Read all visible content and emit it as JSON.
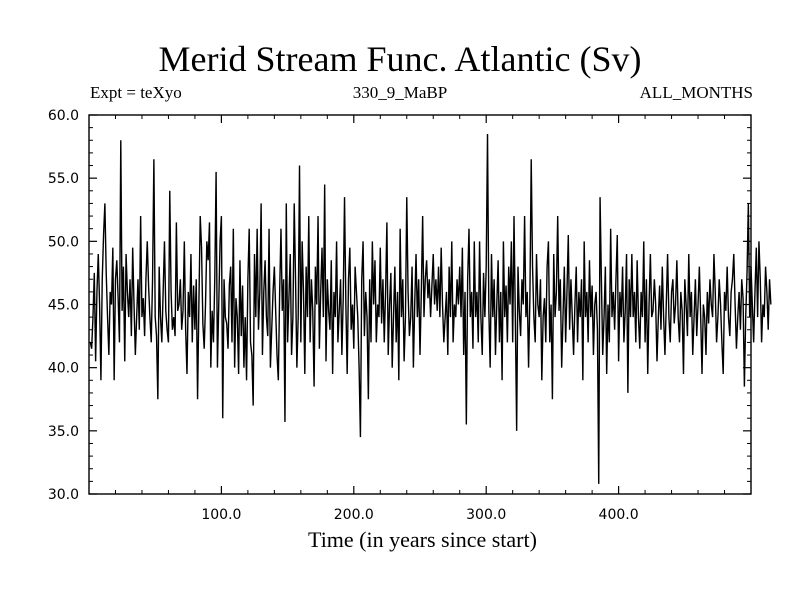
{
  "header": {
    "title": "Merid Stream Func. Atlantic (Sv)",
    "left_label": "Expt = teXyo",
    "center_label": "330_9_MaBP",
    "right_label": "ALL_MONTHS"
  },
  "chart_data": {
    "type": "line",
    "title": "Merid Stream Func. Atlantic (Sv)",
    "xlabel": "Time (in years since start)",
    "ylabel": "",
    "xlim": [
      0,
      500
    ],
    "ylim": [
      30.0,
      60.0
    ],
    "x_ticks": [
      100,
      200,
      300,
      400
    ],
    "x_tick_labels": [
      "100.0",
      "200.0",
      "300.0",
      "400.0"
    ],
    "y_ticks": [
      30,
      35,
      40,
      45,
      50,
      55,
      60
    ],
    "y_tick_labels": [
      "30.0",
      "35.0",
      "40.0",
      "45.0",
      "50.0",
      "55.0",
      "60.0"
    ],
    "grid": false,
    "series": [
      {
        "color": "#000000",
        "x_start": 1,
        "x_step": 1,
        "values": [
          42.0,
          41.5,
          44.0,
          47.5,
          40.5,
          46.0,
          49.0,
          45.0,
          39.0,
          47.0,
          50.5,
          53.0,
          47.5,
          44.0,
          41.0,
          46.0,
          45.0,
          49.5,
          39.0,
          47.0,
          48.5,
          45.5,
          42.0,
          58.0,
          44.5,
          48.0,
          40.5,
          49.0,
          46.0,
          44.0,
          47.0,
          42.5,
          49.5,
          45.0,
          41.0,
          44.0,
          47.0,
          43.0,
          52.0,
          44.0,
          45.5,
          42.5,
          47.0,
          50.0,
          46.5,
          44.0,
          42.0,
          47.0,
          56.5,
          44.0,
          42.5,
          37.5,
          48.0,
          44.0,
          42.0,
          46.0,
          50.0,
          44.5,
          43.0,
          42.0,
          54.0,
          46.0,
          43.0,
          44.0,
          42.5,
          51.5,
          44.5,
          45.0,
          47.0,
          43.0,
          44.5,
          50.0,
          43.0,
          39.5,
          46.0,
          44.0,
          49.0,
          42.0,
          46.5,
          43.0,
          47.0,
          37.5,
          45.0,
          52.0,
          49.5,
          43.5,
          41.5,
          45.0,
          50.0,
          48.5,
          51.5,
          40.0,
          44.5,
          42.0,
          47.0,
          55.5,
          40.0,
          45.0,
          50.0,
          52.0,
          36.0,
          47.0,
          44.0,
          43.5,
          41.5,
          46.5,
          48.0,
          42.0,
          51.0,
          40.0,
          45.5,
          44.0,
          39.5,
          48.5,
          42.5,
          46.5,
          40.0,
          44.0,
          39.0,
          47.0,
          51.0,
          42.0,
          41.0,
          37.0,
          49.0,
          44.0,
          51.0,
          43.0,
          46.0,
          53.0,
          41.0,
          46.0,
          48.5,
          44.0,
          42.5,
          51.0,
          40.0,
          43.0,
          46.0,
          48.0,
          44.5,
          41.0,
          39.0,
          46.0,
          51.0,
          44.5,
          47.0,
          35.7,
          53.0,
          42.0,
          45.5,
          49.0,
          41.0,
          44.0,
          53.0,
          47.0,
          40.0,
          44.0,
          56.0,
          42.0,
          50.0,
          46.0,
          39.5,
          48.0,
          44.0,
          52.0,
          42.0,
          47.0,
          44.5,
          38.5,
          48.0,
          45.0,
          52.0,
          41.5,
          46.0,
          49.5,
          44.0,
          54.5,
          40.5,
          47.0,
          44.5,
          43.0,
          48.5,
          39.5,
          46.0,
          44.0,
          50.0,
          42.0,
          44.5,
          47.0,
          41.0,
          45.5,
          53.5,
          45.0,
          39.5,
          47.0,
          49.5,
          43.0,
          45.0,
          41.5,
          48.0,
          46.0,
          44.0,
          40.0,
          34.5,
          47.0,
          50.0,
          42.5,
          46.0,
          44.0,
          37.5,
          47.0,
          42.0,
          50.0,
          45.0,
          48.5,
          42.0,
          45.0,
          44.0,
          49.5,
          43.5,
          47.0,
          42.0,
          46.0,
          51.5,
          41.0,
          45.0,
          47.5,
          40.0,
          44.0,
          48.0,
          42.0,
          46.0,
          39.0,
          51.0,
          44.0,
          47.0,
          40.5,
          44.0,
          53.5,
          46.0,
          42.5,
          44.0,
          48.0,
          40.0,
          45.0,
          49.0,
          44.0,
          47.0,
          41.0,
          46.0,
          52.0,
          44.0,
          47.0,
          48.5,
          45.5,
          47.0,
          44.0,
          46.5,
          49.0,
          45.0,
          47.0,
          44.5,
          48.0,
          44.0,
          49.5,
          45.0,
          42.0,
          44.0,
          46.0,
          41.0,
          48.0,
          44.0,
          50.0,
          42.0,
          45.0,
          44.0,
          47.0,
          45.0,
          48.0,
          44.0,
          49.5,
          41.0,
          46.0,
          35.5,
          47.0,
          51.0,
          44.0,
          46.0,
          41.5,
          50.0,
          44.0,
          46.0,
          42.0,
          50.0,
          44.0,
          41.0,
          47.5,
          44.0,
          48.0,
          58.5,
          44.5,
          40.0,
          49.0,
          44.0,
          47.0,
          41.0,
          45.0,
          48.5,
          42.0,
          46.0,
          39.0,
          50.0,
          44.0,
          46.5,
          42.0,
          48.0,
          45.0,
          50.0,
          42.0,
          52.0,
          44.0,
          35.0,
          48.0,
          44.5,
          42.5,
          47.0,
          45.0,
          52.0,
          44.0,
          46.0,
          40.0,
          45.5,
          56.5,
          48.0,
          44.0,
          42.0,
          49.0,
          45.0,
          44.0,
          47.0,
          39.0,
          44.0,
          45.5,
          42.0,
          48.0,
          50.0,
          42.0,
          45.0,
          37.5,
          49.0,
          44.0,
          46.0,
          52.0,
          44.5,
          47.0,
          40.0,
          44.0,
          48.0,
          42.0,
          46.0,
          50.5,
          43.0,
          47.0,
          44.0,
          41.0,
          45.0,
          48.0,
          42.0,
          46.0,
          44.0,
          47.0,
          39.0,
          50.0,
          44.0,
          46.0,
          42.0,
          48.5,
          44.0,
          46.5,
          41.0,
          45.0,
          46.0,
          43.0,
          30.8,
          53.5,
          47.0,
          41.0,
          44.0,
          48.0,
          39.5,
          45.0,
          42.0,
          51.0,
          44.0,
          46.0,
          43.0,
          47.0,
          50.5,
          40.5,
          46.0,
          44.0,
          48.0,
          42.0,
          44.5,
          49.0,
          38.0,
          47.0,
          44.0,
          49.0,
          44.0,
          46.0,
          42.0,
          48.5,
          44.0,
          41.5,
          46.0,
          44.0,
          50.0,
          42.0,
          47.0,
          39.5,
          45.0,
          49.0,
          44.0,
          44.5,
          47.0,
          45.0,
          40.5,
          44.0,
          46.5,
          43.0,
          48.0,
          44.0,
          41.0,
          45.0,
          49.0,
          44.0,
          42.0,
          46.0,
          47.0,
          43.5,
          45.0,
          48.5,
          44.0,
          42.0,
          46.0,
          44.5,
          39.5,
          47.0,
          45.0,
          42.5,
          49.0,
          44.0,
          46.0,
          41.0,
          44.0,
          47.0,
          42.5,
          45.0,
          48.0,
          44.0,
          39.5,
          45.0,
          44.0,
          41.0,
          46.0,
          43.5,
          47.0,
          45.0,
          44.0,
          49.0,
          46.0,
          42.0,
          44.0,
          47.0,
          45.0,
          42.0,
          39.5,
          46.0,
          44.5,
          48.0,
          44.0,
          42.5,
          46.0,
          47.0,
          49.0,
          45.0,
          41.5,
          44.0,
          46.0,
          43.0,
          47.0,
          45.5,
          38.5,
          44.0,
          47.5,
          53.0,
          44.0,
          48.0,
          45.0,
          42.0,
          46.0,
          49.5,
          44.0,
          50.0,
          47.0,
          42.0,
          45.0,
          44.0,
          48.0,
          46.0,
          43.0,
          47.0,
          45.0
        ]
      }
    ]
  }
}
